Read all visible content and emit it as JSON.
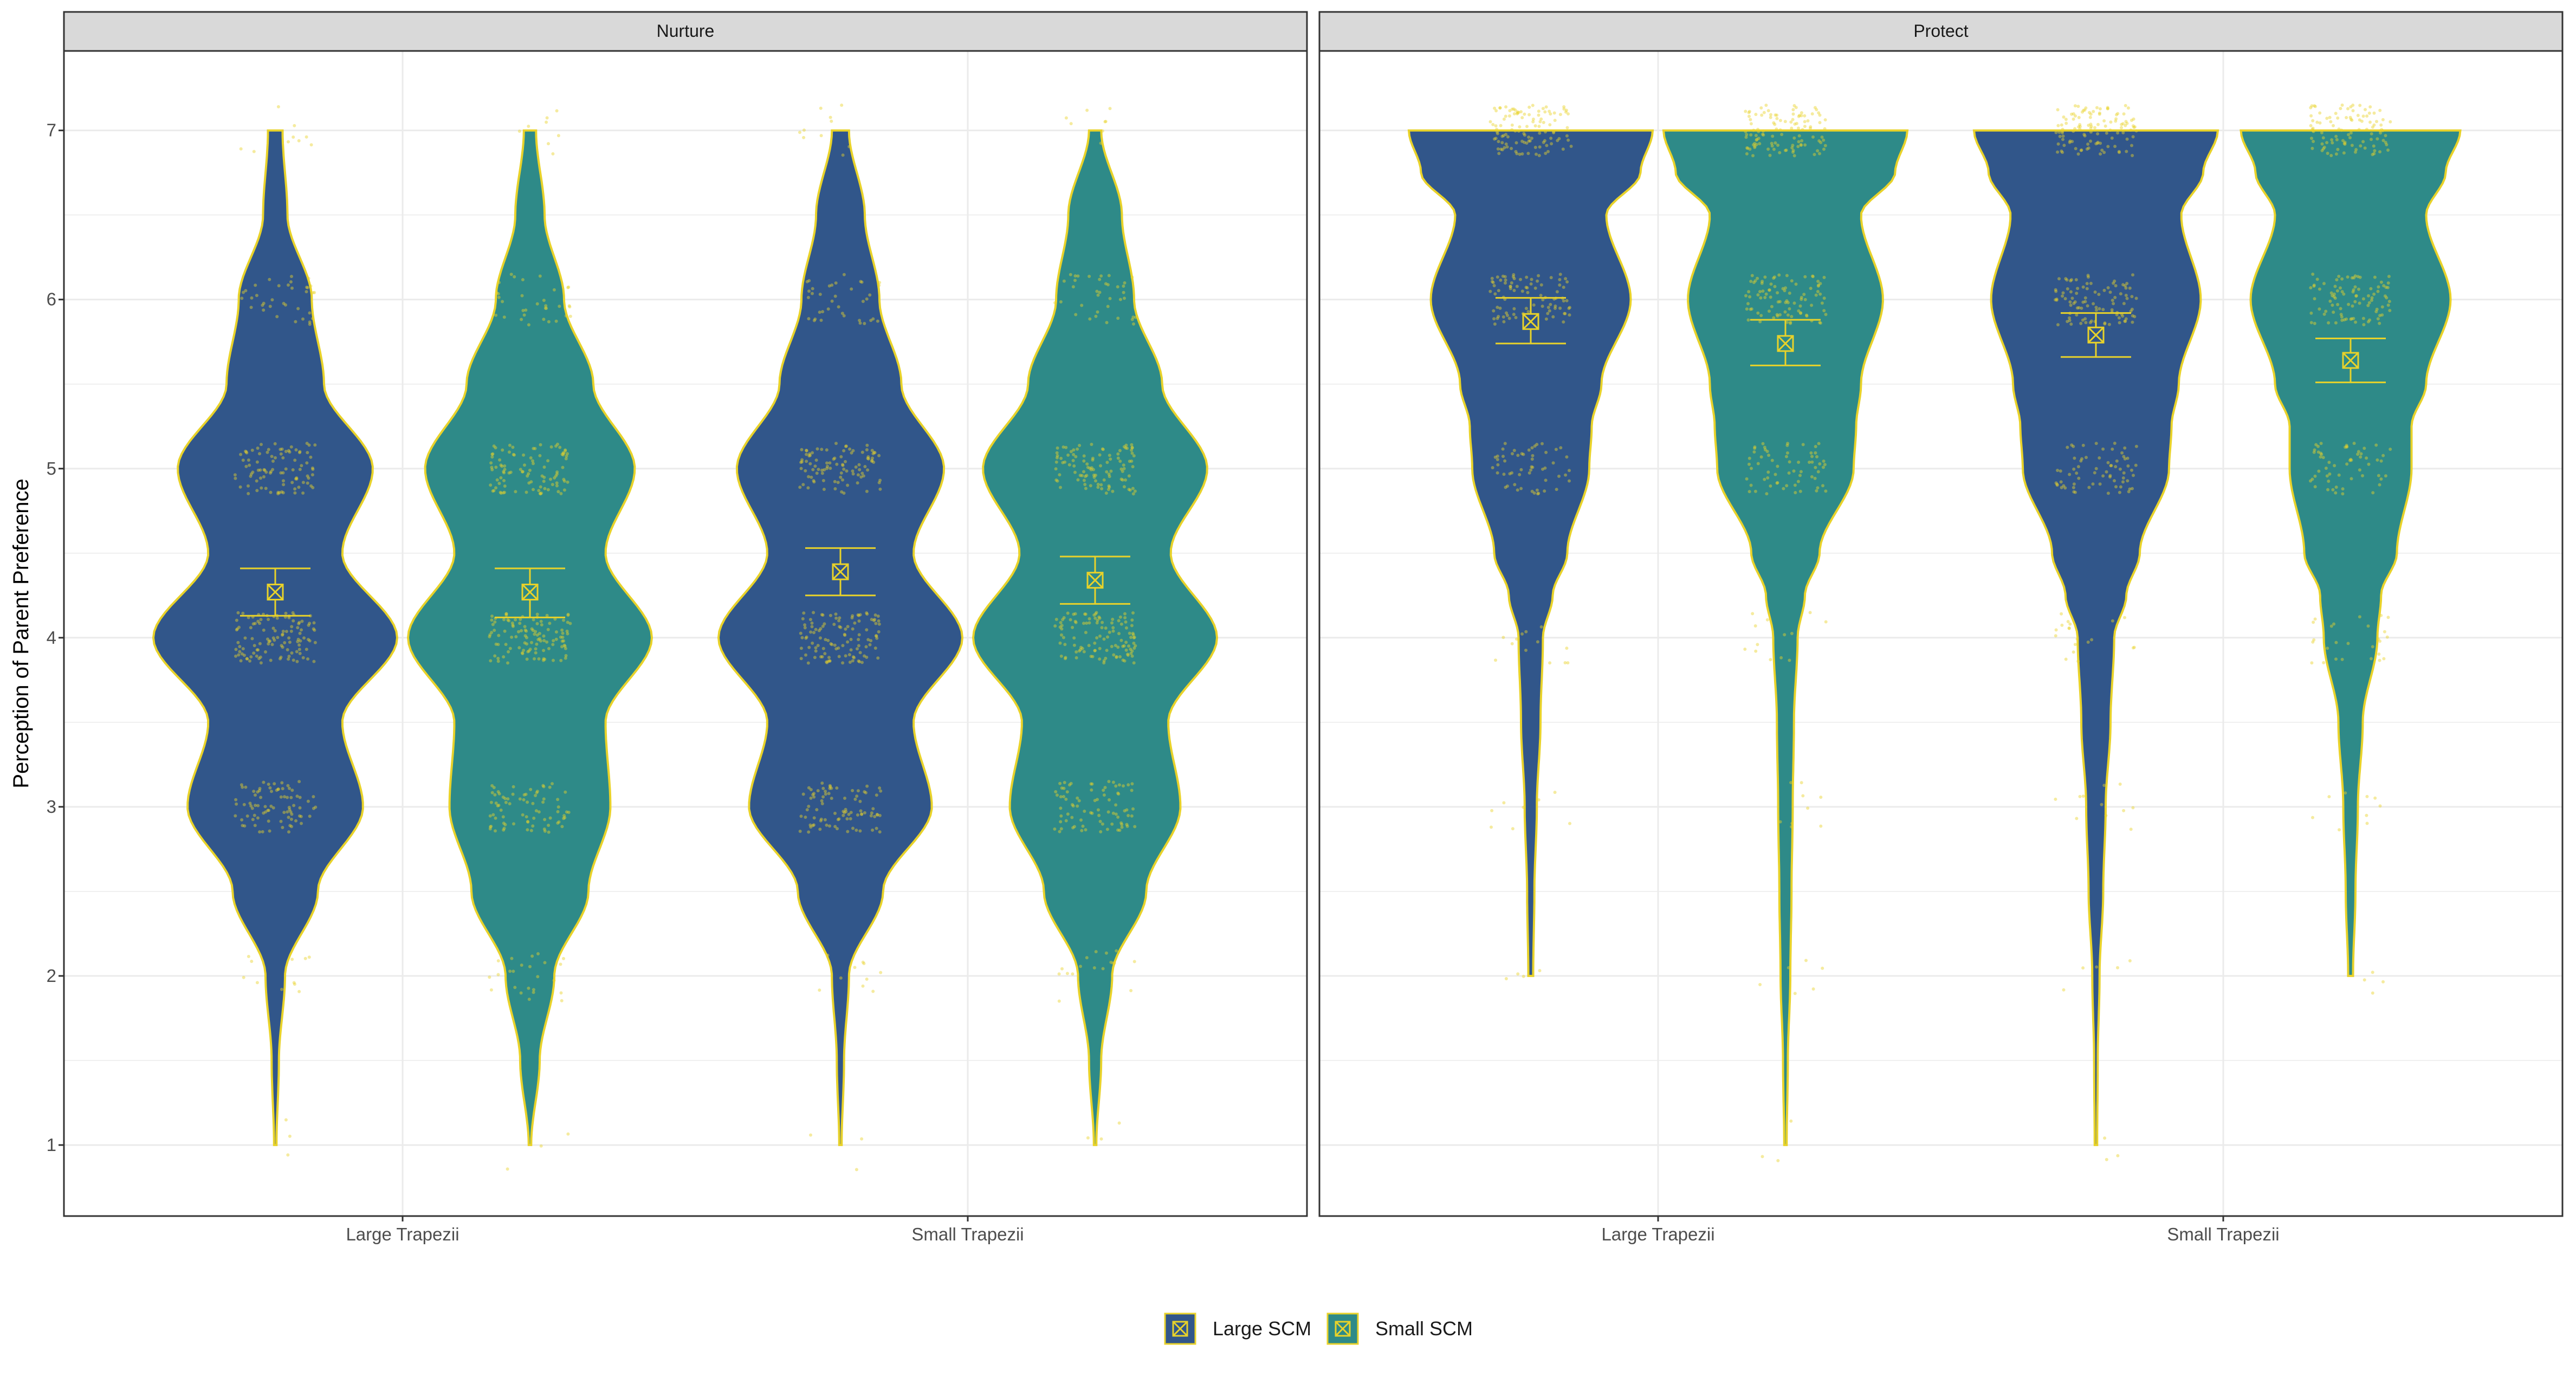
{
  "chart_data": {
    "type": "violin",
    "ylabel": "Perception of Parent Preference",
    "ylim": [
      0.58,
      7.47
    ],
    "y_ticks": [
      "1",
      "2",
      "3",
      "4",
      "5",
      "6",
      "7"
    ],
    "categories": [
      "Large Trapezii",
      "Small Trapezii"
    ],
    "facets": [
      {
        "title": "Nurture",
        "groups": [
          {
            "category": "Large Trapezii",
            "series": "Large SCM",
            "mean": 4.27,
            "ci": [
              4.13,
              4.41
            ],
            "range": [
              1,
              7
            ],
            "density": [
              [
                1,
                0.01
              ],
              [
                1.5,
                0.03
              ],
              [
                2,
                0.08
              ],
              [
                2.5,
                0.35
              ],
              [
                3,
                0.72
              ],
              [
                3.5,
                0.55
              ],
              [
                4,
                1.0
              ],
              [
                4.5,
                0.55
              ],
              [
                5,
                0.8
              ],
              [
                5.5,
                0.4
              ],
              [
                6,
                0.3
              ],
              [
                6.5,
                0.1
              ],
              [
                7,
                0.06
              ]
            ]
          },
          {
            "category": "Large Trapezii",
            "series": "Small SCM",
            "mean": 4.27,
            "ci": [
              4.12,
              4.41
            ],
            "range": [
              1,
              7
            ],
            "density": [
              [
                1,
                0.01
              ],
              [
                1.5,
                0.08
              ],
              [
                2,
                0.2
              ],
              [
                2.5,
                0.48
              ],
              [
                3,
                0.66
              ],
              [
                3.5,
                0.62
              ],
              [
                4,
                1.0
              ],
              [
                4.5,
                0.62
              ],
              [
                5,
                0.86
              ],
              [
                5.5,
                0.52
              ],
              [
                6,
                0.28
              ],
              [
                6.5,
                0.12
              ],
              [
                7,
                0.05
              ]
            ]
          },
          {
            "category": "Small Trapezii",
            "series": "Large SCM",
            "mean": 4.39,
            "ci": [
              4.25,
              4.53
            ],
            "range": [
              1,
              7
            ],
            "density": [
              [
                1,
                0.01
              ],
              [
                1.5,
                0.03
              ],
              [
                2,
                0.07
              ],
              [
                2.5,
                0.35
              ],
              [
                3,
                0.75
              ],
              [
                3.5,
                0.6
              ],
              [
                4,
                1.0
              ],
              [
                4.5,
                0.6
              ],
              [
                5,
                0.85
              ],
              [
                5.5,
                0.5
              ],
              [
                6,
                0.32
              ],
              [
                6.5,
                0.2
              ],
              [
                7,
                0.07
              ]
            ]
          },
          {
            "category": "Small Trapezii",
            "series": "Small SCM",
            "mean": 4.34,
            "ci": [
              4.2,
              4.48
            ],
            "range": [
              1,
              7
            ],
            "density": [
              [
                1,
                0.01
              ],
              [
                1.5,
                0.05
              ],
              [
                2,
                0.14
              ],
              [
                2.5,
                0.42
              ],
              [
                3,
                0.7
              ],
              [
                3.5,
                0.6
              ],
              [
                4,
                1.0
              ],
              [
                4.5,
                0.62
              ],
              [
                5,
                0.92
              ],
              [
                5.5,
                0.55
              ],
              [
                6,
                0.32
              ],
              [
                6.5,
                0.22
              ],
              [
                7,
                0.05
              ]
            ]
          }
        ]
      },
      {
        "title": "Protect",
        "groups": [
          {
            "category": "Large Trapezii",
            "series": "Large SCM",
            "mean": 5.87,
            "ci": [
              5.74,
              6.01
            ],
            "range": [
              2,
              7
            ],
            "density": [
              [
                2,
                0.02
              ],
              [
                2.5,
                0.03
              ],
              [
                3,
                0.05
              ],
              [
                3.5,
                0.08
              ],
              [
                4,
                0.1
              ],
              [
                4.25,
                0.18
              ],
              [
                4.5,
                0.3
              ],
              [
                5,
                0.48
              ],
              [
                5.25,
                0.5
              ],
              [
                5.5,
                0.58
              ],
              [
                6,
                0.82
              ],
              [
                6.5,
                0.62
              ],
              [
                6.75,
                0.9
              ],
              [
                7,
                1.0
              ]
            ]
          },
          {
            "category": "Large Trapezii",
            "series": "Small SCM",
            "mean": 5.74,
            "ci": [
              5.61,
              5.88
            ],
            "range": [
              1,
              7
            ],
            "density": [
              [
                1,
                0.01
              ],
              [
                1.5,
                0.02
              ],
              [
                2,
                0.04
              ],
              [
                2.5,
                0.05
              ],
              [
                3,
                0.06
              ],
              [
                3.5,
                0.07
              ],
              [
                4,
                0.1
              ],
              [
                4.25,
                0.16
              ],
              [
                4.5,
                0.28
              ],
              [
                5,
                0.56
              ],
              [
                5.25,
                0.58
              ],
              [
                5.5,
                0.62
              ],
              [
                6,
                0.8
              ],
              [
                6.5,
                0.62
              ],
              [
                6.75,
                0.9
              ],
              [
                7,
                1.0
              ]
            ]
          },
          {
            "category": "Small Trapezii",
            "series": "Large SCM",
            "mean": 5.79,
            "ci": [
              5.66,
              5.92
            ],
            "range": [
              1,
              7
            ],
            "density": [
              [
                1,
                0.01
              ],
              [
                1.5,
                0.015
              ],
              [
                2,
                0.03
              ],
              [
                2.5,
                0.06
              ],
              [
                3,
                0.08
              ],
              [
                3.5,
                0.12
              ],
              [
                4,
                0.15
              ],
              [
                4.25,
                0.25
              ],
              [
                4.5,
                0.36
              ],
              [
                5,
                0.6
              ],
              [
                5.25,
                0.62
              ],
              [
                5.5,
                0.68
              ],
              [
                6,
                0.86
              ],
              [
                6.5,
                0.7
              ],
              [
                6.75,
                0.88
              ],
              [
                7,
                1.0
              ]
            ]
          },
          {
            "category": "Small Trapezii",
            "series": "Small SCM",
            "mean": 5.64,
            "ci": [
              5.51,
              5.77
            ],
            "range": [
              2,
              7
            ],
            "density": [
              [
                2,
                0.02
              ],
              [
                2.5,
                0.04
              ],
              [
                3,
                0.06
              ],
              [
                3.5,
                0.1
              ],
              [
                4,
                0.22
              ],
              [
                4.25,
                0.25
              ],
              [
                4.5,
                0.38
              ],
              [
                5,
                0.5
              ],
              [
                5.25,
                0.5
              ],
              [
                5.5,
                0.62
              ],
              [
                6,
                0.82
              ],
              [
                6.5,
                0.62
              ],
              [
                6.75,
                0.78
              ],
              [
                7,
                0.9
              ]
            ]
          }
        ]
      }
    ],
    "legend": {
      "placement": "bottom",
      "entries": [
        {
          "name": "Large SCM",
          "color": "#31568a"
        },
        {
          "name": "Small SCM",
          "color": "#2e8a88"
        }
      ]
    },
    "colors": {
      "outline": "#e8d22a",
      "points": "#e8d22a",
      "grid": "#ebebeb",
      "strip": "#d9d9d9"
    },
    "grid": true
  }
}
